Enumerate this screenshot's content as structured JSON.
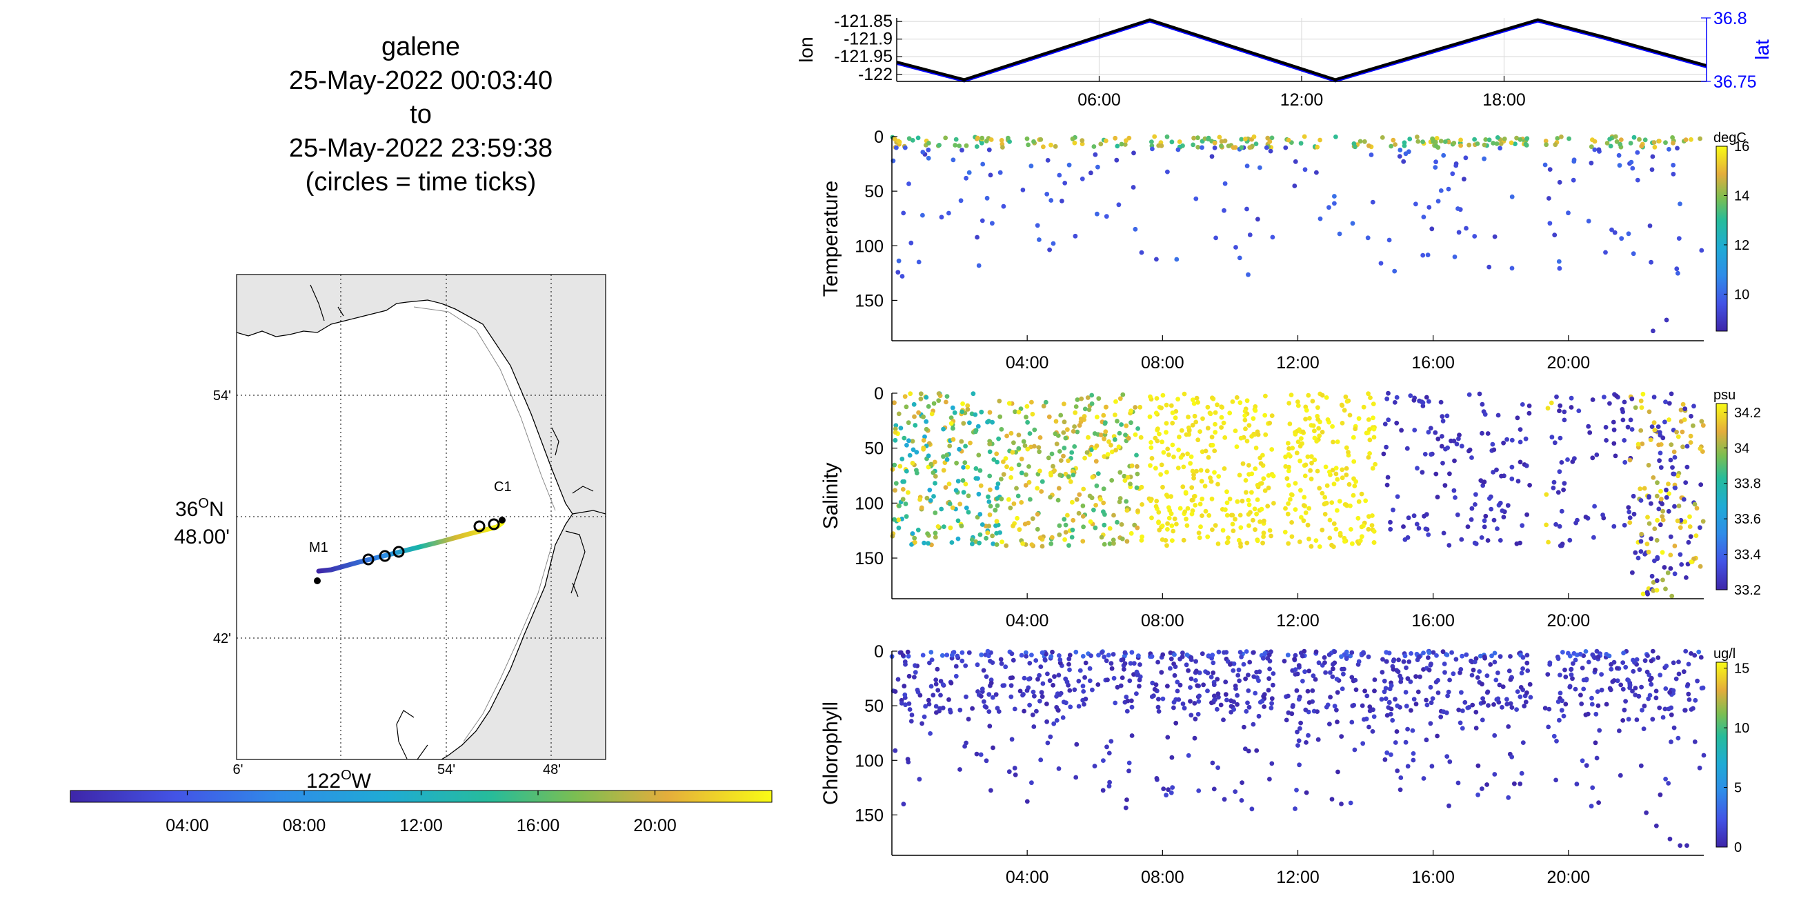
{
  "title": {
    "lines": [
      "galene",
      "25-May-2022 00:03:40",
      "to",
      "25-May-2022 23:59:38",
      "(circles = time ticks)"
    ]
  },
  "map": {
    "lat_ticks": [
      "54'",
      "48.00'",
      "42'"
    ],
    "lat_degree_label": "36",
    "lat_degree_sup": "O",
    "lat_degree_suffix": "N",
    "lon_ticks": [
      "6'",
      "54'",
      "48'"
    ],
    "lon_degree_label": "122",
    "lon_degree_sup": "O",
    "lon_degree_suffix": "W",
    "stations": [
      "M1",
      "C1"
    ],
    "land_color": "#e6e6e6",
    "coast_color": "#000000"
  },
  "time_colorbar": {
    "ticks": [
      "04:00",
      "08:00",
      "12:00",
      "16:00",
      "20:00"
    ]
  },
  "colors": {
    "parula_low": "#3e26a8",
    "parula_mid_blue": "#2f8ce8",
    "parula_teal": "#18b5a6",
    "parula_high": "#f9fb15",
    "lat_line": "#0000ff"
  },
  "chart_data": [
    {
      "type": "line",
      "name": "position",
      "ylabel": "lon",
      "ylabel_right": "lat",
      "x_ticks": [
        "06:00",
        "12:00",
        "18:00"
      ],
      "y_ticks": [
        "-121.85",
        "-121.9",
        "-121.95",
        "-122"
      ],
      "y_right_ticks": [
        "36.8",
        "36.75"
      ],
      "xlim": [
        0,
        24
      ],
      "ylim": [
        -122.02,
        -121.84
      ],
      "series": [
        {
          "x": [
            0,
            2,
            7.5,
            13,
            19,
            21,
            24
          ],
          "values": [
            -121.965,
            -122.015,
            -121.845,
            -122.015,
            -121.845,
            -121.895,
            -121.975
          ]
        }
      ]
    },
    {
      "type": "scatter",
      "ylabel": "Temperature",
      "colorbar_unit": "degC",
      "colorbar_ticks": [
        "16",
        "14",
        "12",
        "10"
      ],
      "x_ticks": [
        "04:00",
        "08:00",
        "12:00",
        "16:00",
        "20:00"
      ],
      "y_ticks": [
        "0",
        "50",
        "100",
        "150"
      ],
      "xlim": [
        0,
        24
      ],
      "ylim": [
        0,
        187
      ],
      "clim": [
        8.5,
        16
      ],
      "sample_points": [
        [
          1.2,
          3,
          14.2
        ],
        [
          2.4,
          42,
          9.6
        ],
        [
          3.1,
          96,
          9.2
        ],
        [
          4.5,
          22,
          10
        ],
        [
          6.8,
          70,
          9.4
        ],
        [
          9.1,
          5,
          13.8
        ],
        [
          11.3,
          62,
          9.3
        ],
        [
          13.6,
          139,
          9.0
        ],
        [
          15.2,
          2,
          14
        ],
        [
          17.3,
          131,
          9.1
        ],
        [
          20.4,
          78,
          9.3
        ],
        [
          22.5,
          178,
          8.8
        ],
        [
          23.6,
          8,
          13.6
        ]
      ]
    },
    {
      "type": "scatter",
      "ylabel": "Salinity",
      "colorbar_unit": "psu",
      "colorbar_ticks": [
        "34.2",
        "34",
        "33.8",
        "33.6",
        "33.4",
        "33.2"
      ],
      "x_ticks": [
        "04:00",
        "08:00",
        "12:00",
        "16:00",
        "20:00"
      ],
      "y_ticks": [
        "0",
        "50",
        "100",
        "150"
      ],
      "xlim": [
        0,
        24
      ],
      "ylim": [
        0,
        187
      ],
      "clim": [
        33.2,
        34.25
      ],
      "sample_points": [
        [
          0.5,
          20,
          33.8
        ],
        [
          1.0,
          90,
          34.0
        ],
        [
          2.2,
          60,
          34.2
        ],
        [
          3.5,
          40,
          33.9
        ],
        [
          5.0,
          110,
          34.2
        ],
        [
          8.5,
          70,
          34.2
        ],
        [
          12.5,
          100,
          34.2
        ],
        [
          15.0,
          30,
          33.25
        ],
        [
          17.0,
          90,
          33.25
        ],
        [
          19.5,
          50,
          33.3
        ],
        [
          22.4,
          150,
          33.3
        ],
        [
          23.3,
          60,
          34.1
        ]
      ]
    },
    {
      "type": "scatter",
      "ylabel": "Chlorophyll",
      "colorbar_unit": "ug/l",
      "colorbar_ticks": [
        "15",
        "10",
        "5",
        "0"
      ],
      "x_ticks": [
        "04:00",
        "08:00",
        "12:00",
        "16:00",
        "20:00"
      ],
      "y_ticks": [
        "0",
        "50",
        "100",
        "150"
      ],
      "xlim": [
        0,
        24
      ],
      "ylim": [
        0,
        187
      ],
      "clim": [
        0,
        15.5
      ],
      "sample_points": [
        [
          1.5,
          30,
          1.2
        ],
        [
          3.0,
          60,
          0.8
        ],
        [
          5.5,
          20,
          1.5
        ],
        [
          7.0,
          130,
          0.3
        ],
        [
          9.0,
          40,
          1.1
        ],
        [
          12.0,
          70,
          0.6
        ],
        [
          14.5,
          30,
          1.3
        ],
        [
          17.0,
          80,
          0.5
        ],
        [
          19.0,
          40,
          1.0
        ],
        [
          22.2,
          150,
          0.4
        ],
        [
          23.0,
          175,
          0.2
        ]
      ]
    }
  ]
}
